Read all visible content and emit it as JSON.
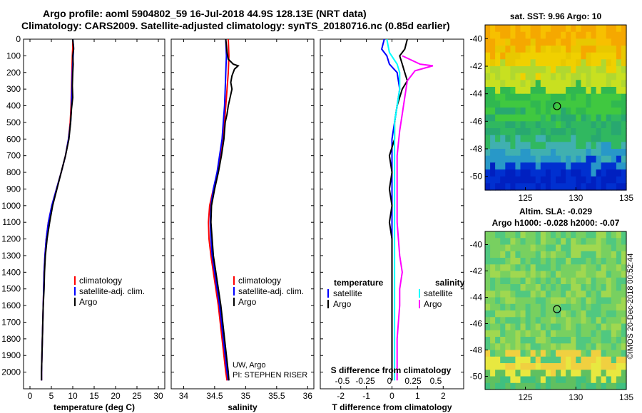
{
  "titles": {
    "line1": "Argo profile: aoml 5904802_59 16-Jul-2018 44.9S 128.13E (NRT data)",
    "line2": "Climatology: CARS2009. Satellite-adjusted climatology: synTS_20180716.nc (0.85d earlier)"
  },
  "timestamp": "©IMOS 20-Dec-2018 00:52:44",
  "colors": {
    "climatology": "#ff0000",
    "satellite": "#0000ff",
    "argo": "#000000",
    "sal_satellite": "#00ffff",
    "sal_argo": "#ff00ff"
  },
  "chart_data": [
    {
      "type": "line",
      "id": "temperature",
      "xlabel": "temperature (deg C)",
      "xlim": [
        -1.5,
        31.5
      ],
      "ylim": [
        2100,
        0
      ],
      "xticks": [
        0,
        5,
        10,
        15,
        20,
        25,
        30
      ],
      "yticks": [
        0,
        100,
        200,
        300,
        400,
        500,
        600,
        700,
        800,
        900,
        1000,
        1100,
        1200,
        1300,
        1400,
        1500,
        1600,
        1700,
        1800,
        1900,
        2000
      ],
      "legend": [
        "climatology",
        "satellite-adj. clim.",
        "Argo"
      ],
      "series": [
        {
          "name": "climatology",
          "color": "#ff0000",
          "points": [
            [
              10,
              0
            ],
            [
              10,
              50
            ],
            [
              9.9,
              100
            ],
            [
              9.8,
              200
            ],
            [
              9.7,
              300
            ],
            [
              9.6,
              400
            ],
            [
              9.4,
              500
            ],
            [
              9.0,
              600
            ],
            [
              8.3,
              700
            ],
            [
              7.3,
              800
            ],
            [
              6.2,
              900
            ],
            [
              5.1,
              1000
            ],
            [
              4.3,
              1100
            ],
            [
              3.8,
              1200
            ],
            [
              3.5,
              1300
            ],
            [
              3.3,
              1400
            ],
            [
              3.2,
              1500
            ],
            [
              3.1,
              1600
            ],
            [
              3.0,
              1700
            ],
            [
              2.9,
              1800
            ],
            [
              2.8,
              1900
            ],
            [
              2.7,
              2000
            ],
            [
              2.7,
              2050
            ]
          ]
        },
        {
          "name": "satellite-adj. clim.",
          "color": "#0000ff",
          "points": [
            [
              10,
              0
            ],
            [
              10.2,
              50
            ],
            [
              10.1,
              100
            ],
            [
              9.9,
              200
            ],
            [
              9.8,
              300
            ],
            [
              9.7,
              400
            ],
            [
              9.5,
              500
            ],
            [
              9.0,
              600
            ],
            [
              8.3,
              700
            ],
            [
              7.3,
              800
            ],
            [
              6.2,
              900
            ],
            [
              5.1,
              1000
            ],
            [
              4.3,
              1100
            ],
            [
              3.8,
              1200
            ],
            [
              3.5,
              1300
            ],
            [
              3.3,
              1400
            ],
            [
              3.2,
              1500
            ],
            [
              3.1,
              1600
            ],
            [
              3.0,
              1700
            ],
            [
              2.9,
              1800
            ],
            [
              2.8,
              1900
            ],
            [
              2.7,
              2000
            ],
            [
              2.7,
              2050
            ]
          ]
        },
        {
          "name": "Argo",
          "color": "#000000",
          "points": [
            [
              10.0,
              0
            ],
            [
              10.2,
              60
            ],
            [
              10.0,
              100
            ],
            [
              10.1,
              150
            ],
            [
              10.0,
              200
            ],
            [
              9.9,
              280
            ],
            [
              10.0,
              350
            ],
            [
              9.7,
              420
            ],
            [
              9.5,
              500
            ],
            [
              9.1,
              600
            ],
            [
              8.3,
              700
            ],
            [
              7.3,
              800
            ],
            [
              6.3,
              900
            ],
            [
              5.3,
              1000
            ],
            [
              4.6,
              1100
            ],
            [
              4.0,
              1200
            ],
            [
              3.6,
              1300
            ],
            [
              3.4,
              1400
            ],
            [
              3.3,
              1500
            ],
            [
              3.1,
              1600
            ],
            [
              3.0,
              1700
            ],
            [
              2.9,
              1800
            ],
            [
              2.8,
              1900
            ],
            [
              2.7,
              2000
            ],
            [
              2.7,
              2050
            ]
          ]
        }
      ]
    },
    {
      "type": "line",
      "id": "salinity",
      "xlabel": "salinity",
      "xlim": [
        33.8,
        36.1
      ],
      "ylim": [
        2100,
        0
      ],
      "xticks": [
        34,
        34.5,
        35,
        35.5,
        36
      ],
      "legend": [
        "climatology",
        "satellite-adj. clim.",
        "Argo"
      ],
      "annotation": [
        "UW, Argo",
        "PI: STEPHEN RISER"
      ],
      "series": [
        {
          "name": "climatology",
          "color": "#ff0000",
          "points": [
            [
              34.72,
              0
            ],
            [
              34.73,
              100
            ],
            [
              34.72,
              200
            ],
            [
              34.7,
              300
            ],
            [
              34.68,
              400
            ],
            [
              34.66,
              500
            ],
            [
              34.63,
              600
            ],
            [
              34.6,
              700
            ],
            [
              34.55,
              800
            ],
            [
              34.48,
              900
            ],
            [
              34.42,
              1000
            ],
            [
              34.4,
              1100
            ],
            [
              34.41,
              1200
            ],
            [
              34.44,
              1300
            ],
            [
              34.48,
              1400
            ],
            [
              34.52,
              1500
            ],
            [
              34.56,
              1600
            ],
            [
              34.59,
              1700
            ],
            [
              34.62,
              1800
            ],
            [
              34.65,
              1900
            ],
            [
              34.68,
              2000
            ],
            [
              34.7,
              2050
            ]
          ]
        },
        {
          "name": "satellite-adj. clim.",
          "color": "#0000ff",
          "points": [
            [
              34.68,
              0
            ],
            [
              34.69,
              100
            ],
            [
              34.68,
              200
            ],
            [
              34.67,
              300
            ],
            [
              34.66,
              400
            ],
            [
              34.64,
              500
            ],
            [
              34.62,
              600
            ],
            [
              34.58,
              700
            ],
            [
              34.54,
              800
            ],
            [
              34.48,
              900
            ],
            [
              34.44,
              1000
            ],
            [
              34.43,
              1100
            ],
            [
              34.44,
              1200
            ],
            [
              34.46,
              1300
            ],
            [
              34.5,
              1400
            ],
            [
              34.54,
              1500
            ],
            [
              34.58,
              1600
            ],
            [
              34.61,
              1700
            ],
            [
              34.64,
              1800
            ],
            [
              34.67,
              1900
            ],
            [
              34.7,
              2000
            ],
            [
              34.72,
              2050
            ]
          ]
        },
        {
          "name": "Argo",
          "color": "#000000",
          "points": [
            [
              34.68,
              0
            ],
            [
              34.7,
              80
            ],
            [
              34.72,
              120
            ],
            [
              34.8,
              150
            ],
            [
              34.88,
              160
            ],
            [
              34.82,
              180
            ],
            [
              34.78,
              220
            ],
            [
              34.76,
              260
            ],
            [
              34.78,
              300
            ],
            [
              34.75,
              350
            ],
            [
              34.72,
              400
            ],
            [
              34.7,
              450
            ],
            [
              34.67,
              500
            ],
            [
              34.65,
              600
            ],
            [
              34.61,
              700
            ],
            [
              34.56,
              800
            ],
            [
              34.5,
              900
            ],
            [
              34.45,
              1000
            ],
            [
              34.44,
              1100
            ],
            [
              34.46,
              1200
            ],
            [
              34.48,
              1300
            ],
            [
              34.52,
              1400
            ],
            [
              34.56,
              1500
            ],
            [
              34.6,
              1600
            ],
            [
              34.63,
              1700
            ],
            [
              34.66,
              1800
            ],
            [
              34.69,
              1900
            ],
            [
              34.72,
              2000
            ],
            [
              34.73,
              2050
            ]
          ]
        }
      ]
    },
    {
      "type": "line",
      "id": "difference",
      "xlabel": "T difference from climatology",
      "xlim": [
        -2.8,
        2.8
      ],
      "ylim": [
        2100,
        0
      ],
      "xticks": [
        -2,
        -1,
        0,
        1,
        2
      ],
      "secondary_xlabel": "S difference from climatology",
      "secondary_xticks": [
        "-0.5",
        "-0.25",
        "0",
        "0.25",
        "0.5"
      ],
      "legend_left_title": "temperature",
      "legend_right_title": "salinity",
      "legend": [
        "satellite",
        "Argo"
      ],
      "series": [
        {
          "name": "temperature satellite",
          "color": "#0000ff",
          "points": [
            [
              -0.3,
              0
            ],
            [
              -0.4,
              60
            ],
            [
              -0.2,
              100
            ],
            [
              -0.1,
              150
            ],
            [
              0.2,
              200
            ],
            [
              0.3,
              300
            ],
            [
              0.2,
              400
            ],
            [
              0.1,
              500
            ],
            [
              0.0,
              600
            ],
            [
              0.0,
              800
            ],
            [
              0.0,
              1000
            ],
            [
              0.0,
              1200
            ],
            [
              0.0,
              1500
            ],
            [
              0.0,
              2050
            ]
          ]
        },
        {
          "name": "temperature Argo",
          "color": "#000000",
          "points": [
            [
              0.6,
              0
            ],
            [
              0.5,
              60
            ],
            [
              0.3,
              100
            ],
            [
              0.4,
              150
            ],
            [
              0.5,
              200
            ],
            [
              0.6,
              250
            ],
            [
              0.4,
              300
            ],
            [
              0.2,
              400
            ],
            [
              0.1,
              500
            ],
            [
              0.1,
              600
            ],
            [
              -0.1,
              700
            ],
            [
              0.0,
              800
            ],
            [
              -0.1,
              900
            ],
            [
              0.0,
              1000
            ],
            [
              -0.1,
              1100
            ],
            [
              0.0,
              1200
            ],
            [
              0.0,
              1500
            ],
            [
              0.0,
              2050
            ]
          ]
        },
        {
          "name": "salinity satellite",
          "color": "#00ffff",
          "points": [
            [
              -0.2,
              0
            ],
            [
              -0.1,
              80
            ],
            [
              0.2,
              150
            ],
            [
              0.3,
              200
            ],
            [
              0.3,
              300
            ],
            [
              0.2,
              400
            ],
            [
              0.1,
              500
            ],
            [
              0.1,
              600
            ],
            [
              0.1,
              800
            ],
            [
              0.1,
              1000
            ],
            [
              0.1,
              1200
            ],
            [
              0.1,
              1500
            ],
            [
              0.1,
              2050
            ]
          ]
        },
        {
          "name": "salinity Argo",
          "color": "#ff00ff",
          "points": [
            [
              0.4,
              100
            ],
            [
              1.1,
              150
            ],
            [
              1.6,
              160
            ],
            [
              0.9,
              190
            ],
            [
              0.6,
              250
            ],
            [
              0.5,
              350
            ],
            [
              0.4,
              450
            ],
            [
              0.3,
              550
            ],
            [
              0.2,
              700
            ],
            [
              0.2,
              900
            ],
            [
              0.2,
              1100
            ],
            [
              0.3,
              1300
            ],
            [
              0.4,
              1400
            ],
            [
              0.3,
              1500
            ],
            [
              0.3,
              1600
            ],
            [
              0.2,
              1800
            ],
            [
              0.2,
              2050
            ]
          ]
        }
      ]
    },
    {
      "type": "heatmap",
      "id": "sst_map",
      "title": "sat. SST: 9.96 Argo: 10",
      "xlim": [
        121,
        135
      ],
      "ylim": [
        -51,
        -39
      ],
      "xticks": [
        125,
        130,
        135
      ],
      "yticks": [
        -40,
        -42,
        -44,
        -46,
        -48,
        -50
      ],
      "marker": [
        128.13,
        -44.9
      ]
    },
    {
      "type": "heatmap",
      "id": "sla_map",
      "title_line1": "Altim. SLA: -0.029",
      "title_line2": "Argo h1000: -0.028 h2000: -0.07",
      "xlim": [
        121,
        135
      ],
      "ylim": [
        -51,
        -39
      ],
      "xticks": [
        125,
        130,
        135
      ],
      "yticks": [
        -40,
        -42,
        -44,
        -46,
        -48,
        -50
      ],
      "marker": [
        128.13,
        -44.9
      ]
    }
  ]
}
